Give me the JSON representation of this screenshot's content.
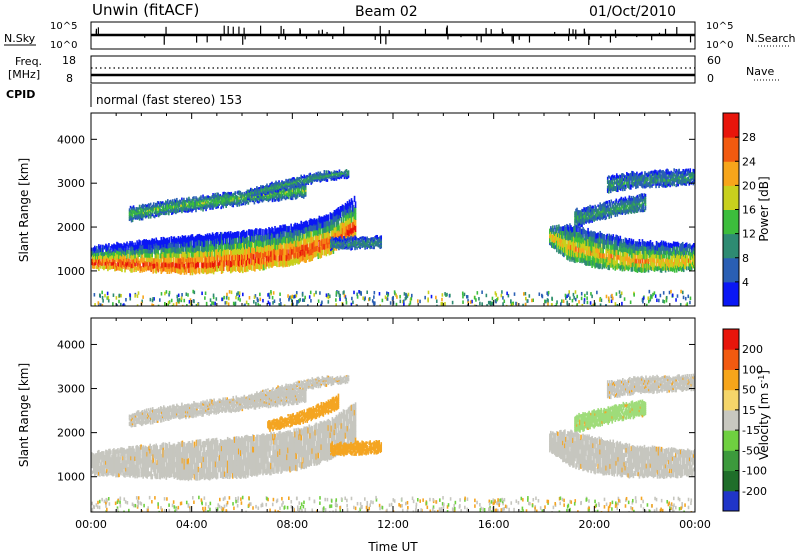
{
  "header": {
    "station": "Unwin (fitACF)",
    "beam": "Beam 02",
    "date": "01/Oct/2010"
  },
  "info_panels": {
    "nsky_label": "N.Sky",
    "nsearch_label": "N.Search",
    "freq_label_1": "Freq.",
    "freq_label_2": "[MHz]",
    "nave_label": "Nave",
    "cpid_label": "CPID",
    "cpid_text": "normal (fast stereo) 153",
    "nsky_ticks": [
      "10^5",
      "10^0"
    ],
    "nsearch_ticks": [
      "10^5",
      "10^0"
    ],
    "freq_ticks": [
      "18",
      "8"
    ],
    "nave_ticks": [
      "60",
      "0"
    ]
  },
  "chart_data": [
    {
      "type": "heatmap",
      "name": "power",
      "xlabel": "",
      "ylabel": "Slant Range [km]",
      "xlim": [
        0,
        24
      ],
      "ylim": [
        200,
        4600
      ],
      "yticks": [
        "1000",
        "2000",
        "3000",
        "4000"
      ],
      "colorbar_label": "Power [dB]",
      "colorbar_ticks": [
        "4",
        "8",
        "12",
        "16",
        "20",
        "24",
        "28"
      ],
      "colorbar_colors": [
        "#0a17f5",
        "#2a5fb4",
        "#2e8b72",
        "#3cbd3c",
        "#c8d01d",
        "#f7a51a",
        "#f25a10",
        "#e8150b"
      ],
      "bands": [
        {
          "x": [
            0,
            2,
            4,
            6,
            8,
            9.5,
            10.5
          ],
          "y_low": [
            1050,
            1000,
            950,
            1000,
            1150,
            1400,
            1800
          ],
          "y_high": [
            1550,
            1700,
            1800,
            1900,
            2050,
            2300,
            2700
          ],
          "core": [
            1200,
            1150,
            1150,
            1250,
            1400,
            1650,
            2000
          ],
          "level": 0.95
        },
        {
          "x": [
            1.5,
            3,
            5,
            7,
            8.5
          ],
          "y_low": [
            2150,
            2300,
            2450,
            2600,
            2700
          ],
          "y_high": [
            2450,
            2600,
            2750,
            2900,
            3000
          ],
          "core": [
            2300,
            2450,
            2600,
            2750,
            2850
          ],
          "level": 0.45
        },
        {
          "x": [
            6.2,
            7.5,
            9,
            10.2
          ],
          "y_low": [
            2650,
            2850,
            3050,
            3150
          ],
          "y_high": [
            2850,
            3050,
            3250,
            3300
          ],
          "core": [
            2750,
            2950,
            3150,
            3250
          ],
          "level": 0.35
        },
        {
          "x": [
            9.5,
            10.5,
            11.5
          ],
          "y_low": [
            1500,
            1520,
            1550
          ],
          "y_high": [
            1750,
            1780,
            1800
          ],
          "core": [
            1600,
            1620,
            1650
          ],
          "level": 0.3
        },
        {
          "x": [
            18.2,
            19,
            20,
            21.5,
            23,
            24
          ],
          "y_low": [
            1600,
            1250,
            1100,
            1000,
            1000,
            1050
          ],
          "y_high": [
            2000,
            2050,
            1900,
            1700,
            1650,
            1600
          ],
          "core": [
            1800,
            1550,
            1400,
            1250,
            1200,
            1250
          ],
          "level": 0.72
        },
        {
          "x": [
            19.2,
            20,
            21,
            22
          ],
          "y_low": [
            2000,
            2150,
            2300,
            2400
          ],
          "y_high": [
            2400,
            2500,
            2650,
            2750
          ],
          "core": [
            2200,
            2300,
            2450,
            2550
          ],
          "level": 0.35
        },
        {
          "x": [
            20.5,
            21.5,
            23,
            24
          ],
          "y_low": [
            2800,
            2900,
            2950,
            3000
          ],
          "y_high": [
            3150,
            3250,
            3300,
            3300
          ],
          "core": [
            2950,
            3050,
            3100,
            3150
          ],
          "level": 0.3
        }
      ]
    },
    {
      "type": "heatmap",
      "name": "velocity",
      "xlabel": "Time UT",
      "ylabel": "Slant Range [km]",
      "xlim": [
        0,
        24
      ],
      "ylim": [
        200,
        4600
      ],
      "xticks": [
        "00:00",
        "04:00",
        "08:00",
        "12:00",
        "16:00",
        "20:00",
        "00:00"
      ],
      "yticks": [
        "1000",
        "2000",
        "3000",
        "4000"
      ],
      "colorbar_label": "Velocity [m s^-1]",
      "colorbar_ticks": [
        "200",
        "100",
        "50",
        "15",
        "-15",
        "-50",
        "-100",
        "-200"
      ],
      "colorbar_colors": [
        "#2035c8",
        "#1f6e2a",
        "#3c9a3c",
        "#6fd040",
        "#c8c8c0",
        "#f5d66a",
        "#f7a51a",
        "#f25a10",
        "#e8150b"
      ],
      "bands": [
        {
          "x": [
            0,
            2,
            4,
            6,
            8,
            9.5,
            10.5
          ],
          "y_low": [
            1050,
            1000,
            950,
            1000,
            1150,
            1400,
            1800
          ],
          "y_high": [
            1550,
            1700,
            1800,
            1900,
            2050,
            2300,
            2700
          ],
          "color": "#c6c6bf"
        },
        {
          "x": [
            1.5,
            3,
            5,
            7,
            8.5
          ],
          "y_low": [
            2150,
            2300,
            2450,
            2600,
            2700
          ],
          "y_high": [
            2450,
            2600,
            2750,
            2900,
            3000
          ],
          "color": "#c6c6bf"
        },
        {
          "x": [
            6.2,
            7.5,
            9,
            10.2
          ],
          "y_low": [
            2650,
            2850,
            3050,
            3150
          ],
          "y_high": [
            2850,
            3050,
            3250,
            3300
          ],
          "color": "#c6c6bf"
        },
        {
          "x": [
            7,
            8.5,
            9.8
          ],
          "y_low": [
            2050,
            2250,
            2550
          ],
          "y_high": [
            2250,
            2500,
            2850
          ],
          "color": "#f4a522"
        },
        {
          "x": [
            9.5,
            10.5,
            11.5
          ],
          "y_low": [
            1500,
            1520,
            1550
          ],
          "y_high": [
            1750,
            1780,
            1800
          ],
          "color": "#f4a522"
        },
        {
          "x": [
            18.2,
            19,
            20,
            21.5,
            23,
            24
          ],
          "y_low": [
            1600,
            1250,
            1100,
            1000,
            1000,
            1050
          ],
          "y_high": [
            2000,
            2050,
            1900,
            1700,
            1650,
            1600
          ],
          "color": "#c6c6bf"
        },
        {
          "x": [
            19.2,
            20,
            21,
            22
          ],
          "y_low": [
            2000,
            2150,
            2300,
            2400
          ],
          "y_high": [
            2400,
            2500,
            2650,
            2750
          ],
          "color": "#9fdc7a"
        },
        {
          "x": [
            20.5,
            21.5,
            23,
            24
          ],
          "y_low": [
            2800,
            2900,
            2950,
            3000
          ],
          "y_high": [
            3150,
            3250,
            3300,
            3300
          ],
          "color": "#c6c6bf"
        }
      ]
    }
  ]
}
